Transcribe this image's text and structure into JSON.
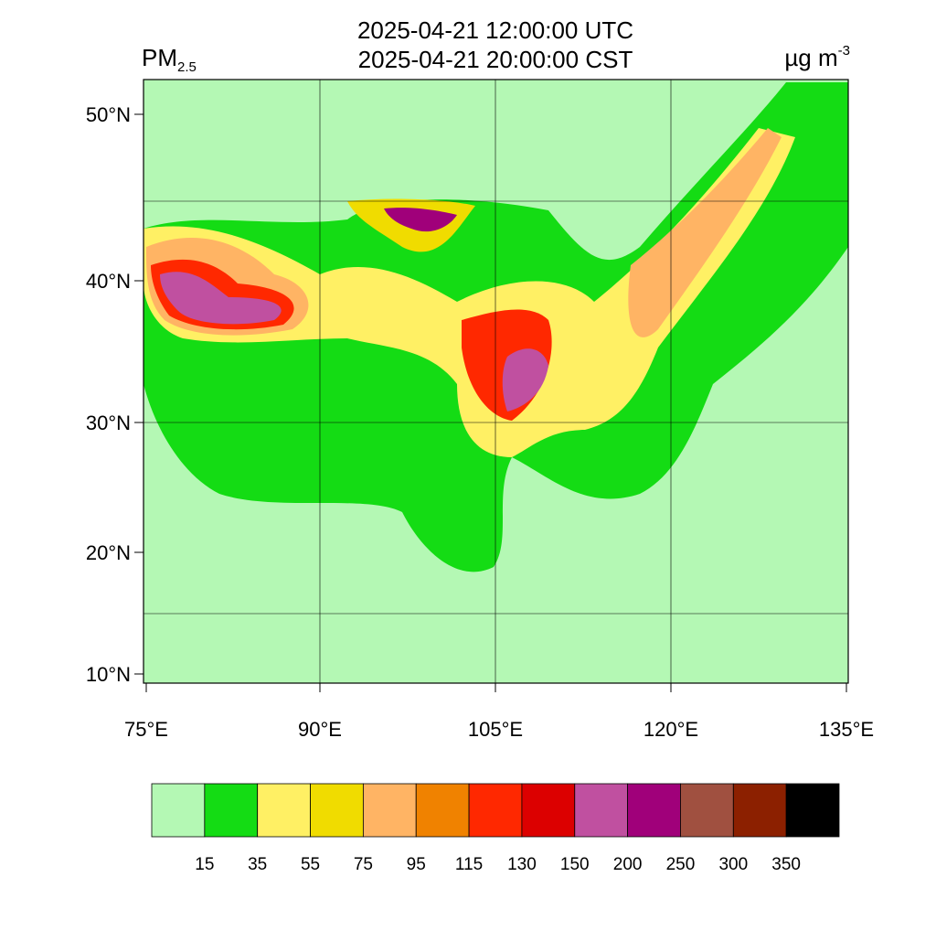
{
  "header": {
    "title_utc": "2025-04-21 12:00:00 UTC",
    "title_cst": "2025-04-21 20:00:00 CST",
    "variable": "PM",
    "variable_sub": "2.5",
    "unit": "µg m",
    "unit_sup": "-3"
  },
  "map": {
    "lat_labels": [
      "50°N",
      "40°N",
      "30°N",
      "20°N",
      "10°N"
    ],
    "lon_labels": [
      "75°E",
      "90°E",
      "105°E",
      "120°E",
      "135°E"
    ]
  },
  "colorbar": {
    "colors": [
      "#b4f8b4",
      "#14dc14",
      "#fff064",
      "#f0dc00",
      "#ffb464",
      "#f08200",
      "#ff2800",
      "#dc0000",
      "#c050a0",
      "#a0007a",
      "#a05040",
      "#8c2000",
      "#000000"
    ],
    "labels": [
      "15",
      "35",
      "55",
      "75",
      "95",
      "115",
      "130",
      "150",
      "200",
      "250",
      "300",
      "350"
    ]
  }
}
